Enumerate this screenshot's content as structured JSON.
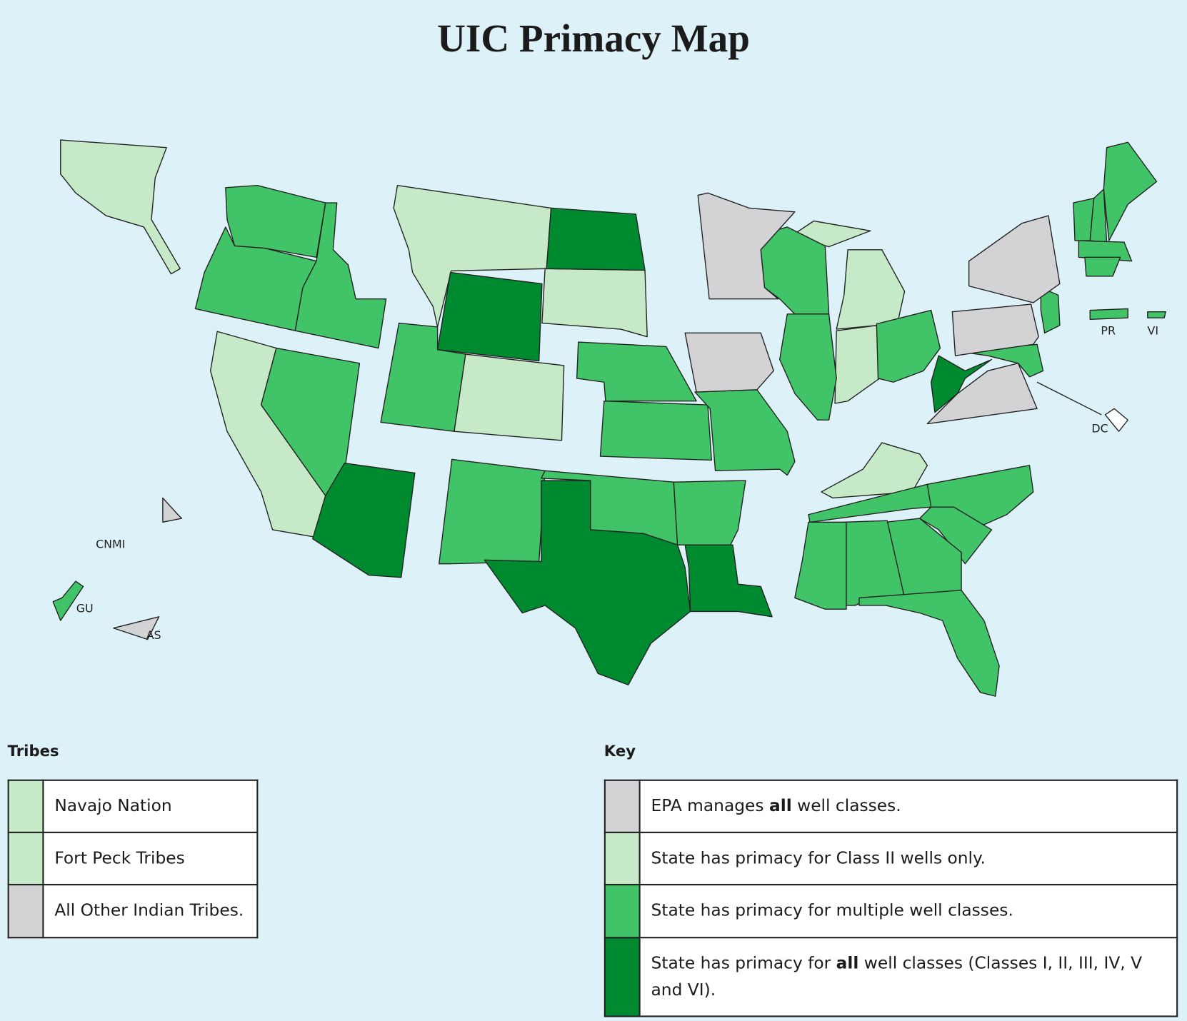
{
  "title": "UIC Primacy Map",
  "map_labels": [
    "PR",
    "VI",
    "DC",
    "CNMI",
    "GU",
    "AS"
  ],
  "tribes": {
    "title": "Tribes",
    "rows": [
      {
        "color": "#c6e9c8",
        "text": [
          "Navajo Nation"
        ]
      },
      {
        "color": "#c6e9c8",
        "text": [
          "Fort Peck Tribes"
        ]
      },
      {
        "color": "#d3d3d6",
        "text": [
          "All Other Indian Tribes."
        ]
      }
    ]
  },
  "key": {
    "title": "Key",
    "rows": [
      {
        "color": "#d3d3d6",
        "text": [
          "EPA manages ",
          "all",
          " well classes."
        ]
      },
      {
        "color": "#c6e9c8",
        "text": [
          "State has primacy for Class II wells only."
        ]
      },
      {
        "color": "#41c467",
        "text": [
          "State has primacy for multiple well classes."
        ]
      },
      {
        "color": "#008a30",
        "text": [
          "State has primacy for ",
          "all",
          " well classes (Classes I, II, III, IV, V and VI)."
        ]
      }
    ]
  }
}
